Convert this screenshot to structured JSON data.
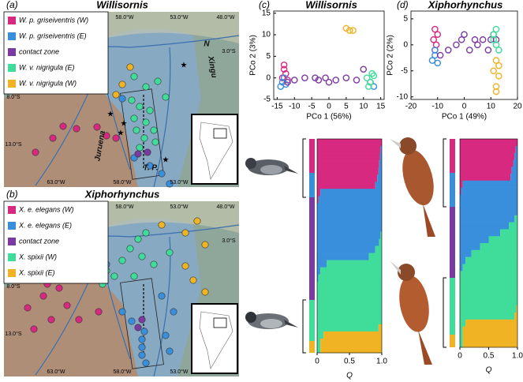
{
  "maps": [
    {
      "panel": "(a)",
      "title": "Willisornis",
      "legend": [
        {
          "label": "W. p. griseiventris (W)",
          "color": "#d6297f"
        },
        {
          "label": "W. p. griseiventris (E)",
          "color": "#3a8fdc"
        },
        {
          "label": "contact zone",
          "color": "#7b3aa0"
        },
        {
          "label": "W. v. nigrigula (E)",
          "color": "#3fdc9a"
        },
        {
          "label": "W. v. nigrigula (W)",
          "color": "#f0b324"
        }
      ],
      "places": [
        "Amazon",
        "Tapajós",
        "Xingu",
        "Juruena",
        "T. P.",
        "N"
      ],
      "coords": [
        "58.0°W",
        "53.0°W",
        "48.0°W",
        "3.0°S",
        "8.0°S",
        "13.0°S",
        "63.0°W",
        "58.0°W",
        "53.0°W"
      ]
    },
    {
      "panel": "(b)",
      "title": "Xiphorhynchus",
      "legend": [
        {
          "label": "X. e. elegans (W)",
          "color": "#d6297f"
        },
        {
          "label": "X. e. elegans (E)",
          "color": "#3a8fdc"
        },
        {
          "label": "contact zone",
          "color": "#7b3aa0"
        },
        {
          "label": "X. spixii (W)",
          "color": "#3fdc9a"
        },
        {
          "label": "X. spixii (E)",
          "color": "#f0b324"
        }
      ],
      "places": [],
      "coords": [
        "58.0°W",
        "53.0°W",
        "48.0°W",
        "3.0°S",
        "8.0°S",
        "13.0°S",
        "63.0°W",
        "58.0°W",
        "53.0°W"
      ]
    }
  ],
  "chart_data": [
    {
      "type": "scatter",
      "panel": "(c)",
      "title": "Willisornis",
      "xlabel": "PCo 1 (56%)",
      "ylabel": "PCo 2 (3%)",
      "xlim": [
        -16,
        16
      ],
      "ylim": [
        -5,
        15.5
      ],
      "xticks": [
        -15,
        -10,
        -5,
        0,
        5,
        10,
        15
      ],
      "yticks": [
        -5,
        0,
        5,
        10,
        15
      ],
      "series": [
        {
          "color": "#d6297f",
          "x": [
            -13,
            -12.5,
            -13.5,
            -12,
            -13
          ],
          "values": [
            3,
            1,
            0,
            -0.5,
            2
          ]
        },
        {
          "color": "#3a8fdc",
          "x": [
            -14,
            -13.5,
            -12.5,
            -13,
            13
          ],
          "values": [
            -2,
            -1,
            -1.5,
            0,
            -2
          ]
        },
        {
          "color": "#7b3aa0",
          "x": [
            -12,
            -10,
            -7,
            -4,
            -3,
            -1,
            0,
            2,
            5,
            8,
            10,
            12
          ],
          "values": [
            -1,
            -0.5,
            0,
            0,
            -0.5,
            0,
            -1,
            -0.5,
            0,
            -0.5,
            2,
            -1
          ]
        },
        {
          "color": "#3fdc9a",
          "x": [
            11,
            12,
            13,
            12.5,
            11.5
          ],
          "values": [
            0,
            -1,
            0.5,
            1,
            -2
          ]
        },
        {
          "color": "#f0b324",
          "x": [
            5,
            6,
            7
          ],
          "values": [
            11.5,
            11,
            11
          ]
        }
      ]
    },
    {
      "type": "scatter",
      "panel": "(d)",
      "title": "Xiphorhynchus",
      "xlabel": "PCo 1 (49%)",
      "ylabel": "PCo 2 (2%)",
      "xlim": [
        -20,
        20
      ],
      "ylim": [
        -10.5,
        6.5
      ],
      "xticks": [
        -20,
        -10,
        0,
        10,
        20
      ],
      "yticks": [
        -10,
        -5,
        0,
        5
      ],
      "series": [
        {
          "color": "#d6297f",
          "x": [
            -11,
            -10,
            -11.5,
            -10.5,
            -11
          ],
          "values": [
            3,
            2,
            1,
            0,
            -1
          ]
        },
        {
          "color": "#3a8fdc",
          "x": [
            -11,
            -12,
            -10,
            -11
          ],
          "values": [
            -2,
            -3,
            -3.5,
            -1
          ]
        },
        {
          "color": "#7b3aa0",
          "x": [
            -9,
            -6,
            -3,
            -1,
            0,
            2,
            4,
            5,
            7,
            9,
            10,
            11,
            12
          ],
          "values": [
            -2,
            -1,
            0,
            1,
            2,
            -1,
            1,
            0,
            1,
            -1,
            1,
            2,
            1
          ]
        },
        {
          "color": "#3fdc9a",
          "x": [
            11,
            12,
            13,
            12,
            11
          ],
          "values": [
            2,
            0,
            -1,
            3,
            1
          ]
        },
        {
          "color": "#f0b324",
          "x": [
            12,
            13,
            11,
            13,
            12,
            12
          ],
          "values": [
            -3,
            -4,
            -5,
            -6,
            -8,
            -9
          ]
        }
      ]
    },
    {
      "type": "bar",
      "orientation": "horizontal",
      "stacked": true,
      "xlabel": "Q",
      "xlim": [
        0,
        1
      ],
      "xticks": [
        0,
        0.5,
        {
          "value": 1,
          "label": "1.0"
        }
      ],
      "categories": [
        null,
        null,
        null,
        null,
        null,
        null,
        null,
        null,
        null,
        null,
        null,
        null,
        null,
        null,
        null,
        null,
        null,
        null,
        null,
        null,
        null,
        null,
        null,
        null,
        null,
        null,
        null,
        null,
        null,
        null
      ],
      "series": [
        {
          "color": "#d6297f",
          "values": [
            1,
            0.98,
            0.97,
            0.96,
            0.95,
            0.93,
            0.9,
            0.05,
            0.02,
            0,
            0,
            0,
            0,
            0,
            0,
            0,
            0,
            0,
            0,
            0,
            0,
            0,
            0,
            0,
            0,
            0,
            0,
            0,
            0,
            0
          ]
        },
        {
          "color": "#3a8fdc",
          "values": [
            0,
            0.02,
            0.03,
            0.04,
            0.05,
            0.07,
            0.1,
            0.95,
            0.98,
            1,
            1,
            1,
            1,
            0.98,
            0.96,
            0.9,
            0.8,
            0.15,
            0.05,
            0.02,
            0,
            0,
            0,
            0,
            0,
            0,
            0,
            0,
            0,
            0
          ]
        },
        {
          "color": "#3fdc9a",
          "values": [
            0,
            0,
            0,
            0,
            0,
            0,
            0,
            0,
            0,
            0,
            0,
            0,
            0,
            0.02,
            0.04,
            0.1,
            0.2,
            0.85,
            0.95,
            0.98,
            1,
            1,
            1,
            1,
            1,
            1,
            0.95,
            0.1,
            0.05,
            0.05
          ]
        },
        {
          "color": "#f0b324",
          "values": [
            0,
            0,
            0,
            0,
            0,
            0,
            0,
            0,
            0,
            0,
            0,
            0,
            0,
            0,
            0,
            0,
            0,
            0,
            0,
            0,
            0,
            0,
            0,
            0,
            0,
            0,
            0.05,
            0.9,
            0.95,
            0.95
          ]
        }
      ]
    },
    {
      "type": "bar",
      "orientation": "horizontal",
      "stacked": true,
      "xlabel": "Q",
      "xlim": [
        0,
        1
      ],
      "xticks": [
        0,
        0.5,
        {
          "value": 1,
          "label": "1.0"
        }
      ],
      "categories": [
        null,
        null,
        null,
        null,
        null,
        null,
        null,
        null,
        null,
        null,
        null,
        null,
        null,
        null,
        null,
        null,
        null,
        null,
        null,
        null,
        null,
        null,
        null,
        null,
        null,
        null,
        null,
        null,
        null,
        null
      ],
      "series": [
        {
          "color": "#d6297f",
          "values": [
            1,
            0.97,
            0.95,
            0.93,
            0.9,
            0.88,
            0.05,
            0.02,
            0,
            0,
            0,
            0,
            0,
            0,
            0,
            0,
            0,
            0,
            0,
            0,
            0,
            0,
            0,
            0,
            0,
            0,
            0,
            0,
            0,
            0
          ]
        },
        {
          "color": "#3a8fdc",
          "values": [
            0,
            0.03,
            0.05,
            0.07,
            0.1,
            0.12,
            0.95,
            0.98,
            1,
            1,
            1,
            0.95,
            0.85,
            0.7,
            0.5,
            0.35,
            0.2,
            0.1,
            0.05,
            0,
            0,
            0,
            0,
            0,
            0,
            0,
            0,
            0,
            0,
            0
          ]
        },
        {
          "color": "#3fdc9a",
          "values": [
            0,
            0,
            0,
            0,
            0,
            0,
            0,
            0,
            0,
            0,
            0,
            0.05,
            0.15,
            0.3,
            0.5,
            0.65,
            0.8,
            0.9,
            0.95,
            1,
            1,
            1,
            1,
            1,
            0.98,
            0.95,
            0.1,
            0.05,
            0.05,
            0.05
          ]
        },
        {
          "color": "#f0b324",
          "values": [
            0,
            0,
            0,
            0,
            0,
            0,
            0,
            0,
            0,
            0,
            0,
            0,
            0,
            0,
            0,
            0,
            0,
            0,
            0,
            0,
            0,
            0,
            0,
            0,
            0.02,
            0.05,
            0.9,
            0.95,
            0.95,
            0.95
          ]
        }
      ]
    }
  ]
}
